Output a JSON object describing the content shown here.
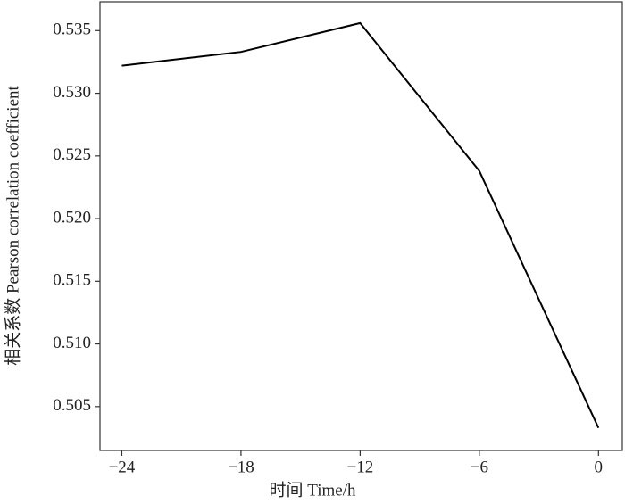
{
  "chart_data": {
    "type": "line",
    "x_label": "时间 Time/h",
    "y_label": "相关系数 Pearson correlation coefficient",
    "x": [
      -24,
      -18,
      -12,
      -6,
      0
    ],
    "values": [
      0.5322,
      0.5333,
      0.5356,
      0.5238,
      0.5033
    ],
    "color": "#000000",
    "xlim": [
      -25.1,
      1.2
    ],
    "xticks": [
      {
        "value": -24,
        "label": "−24"
      },
      {
        "value": -18,
        "label": "−18"
      },
      {
        "value": -12,
        "label": "−12"
      },
      {
        "value": -6,
        "label": "−6"
      },
      0
    ],
    "ylim": [
      0.5015,
      0.5373
    ],
    "yticks": [
      0.505,
      {
        "value": 0.51,
        "label": "0.510"
      },
      0.515,
      {
        "value": 0.52,
        "label": "0.520"
      },
      0.525,
      {
        "value": 0.53,
        "label": "0.530"
      },
      0.535
    ]
  }
}
